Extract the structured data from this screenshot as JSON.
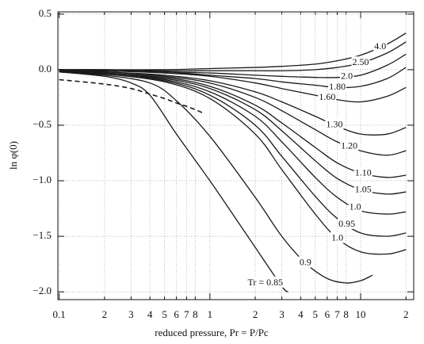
{
  "chart_data": {
    "type": "line",
    "x_label": "reduced pressure, Pr = P/Pc",
    "y_label": "ln φ(0)",
    "xscale": "log",
    "grid": true,
    "line_color": "#1a1a1a",
    "xlim": [
      0.098,
      22.5
    ],
    "ylim": [
      -2.07,
      0.52
    ],
    "xticks": [
      0.1,
      {
        "value": 0.2,
        "label": "2"
      },
      {
        "value": 0.3,
        "label": "3"
      },
      {
        "value": 0.4,
        "label": "4"
      },
      {
        "value": 0.5,
        "label": "5"
      },
      {
        "value": 0.6,
        "label": "6"
      },
      {
        "value": 0.7,
        "label": "7"
      },
      {
        "value": 0.8,
        "label": "8"
      },
      1,
      2,
      3,
      4,
      5,
      6,
      7,
      8,
      10,
      {
        "value": 20,
        "label": "2"
      }
    ],
    "yticks": [
      0.5,
      {
        "value": 0,
        "label": "0.0"
      },
      {
        "value": -0.5,
        "label": "−0.5"
      },
      {
        "value": -1,
        "label": "−1.0"
      },
      {
        "value": -1.5,
        "label": "−1.5"
      },
      {
        "value": -2,
        "label": "−2.0"
      }
    ],
    "saturation": {
      "x": [
        0.1,
        0.2,
        0.3,
        0.4,
        0.5,
        0.6,
        0.7,
        0.8,
        0.9
      ],
      "values": [
        -0.09,
        -0.13,
        -0.17,
        -0.22,
        -0.26,
        -0.3,
        -0.33,
        -0.36,
        -0.39
      ]
    },
    "series": [
      {
        "name": "4.0",
        "x": [
          0.1,
          0.2,
          0.5,
          1,
          2,
          3,
          5,
          7,
          10,
          15,
          20
        ],
        "values": [
          0,
          0,
          0,
          0.01,
          0.02,
          0.03,
          0.05,
          0.08,
          0.13,
          0.23,
          0.33
        ]
      },
      {
        "name": "2.50",
        "x": [
          0.1,
          0.2,
          0.5,
          1,
          2,
          3,
          5,
          7,
          10,
          15,
          20
        ],
        "values": [
          0,
          0,
          -0.01,
          -0.01,
          -0.01,
          -0.01,
          0,
          0.02,
          0.06,
          0.15,
          0.25
        ]
      },
      {
        "name": "2.0",
        "x": [
          0.1,
          0.2,
          0.5,
          1,
          2,
          3,
          5,
          7,
          10,
          15,
          20
        ],
        "values": [
          0,
          -0.01,
          -0.02,
          -0.03,
          -0.05,
          -0.06,
          -0.07,
          -0.07,
          -0.05,
          0.04,
          0.14
        ]
      },
      {
        "name": "1.80",
        "x": [
          0.1,
          0.2,
          0.5,
          1,
          2,
          3,
          5,
          7,
          10,
          15,
          20
        ],
        "values": [
          0,
          -0.01,
          -0.02,
          -0.05,
          -0.08,
          -0.11,
          -0.14,
          -0.16,
          -0.15,
          -0.08,
          0.02
        ]
      },
      {
        "name": "1.60",
        "x": [
          0.1,
          0.2,
          0.5,
          1,
          2,
          3,
          5,
          7,
          10,
          15,
          20
        ],
        "values": [
          0,
          -0.01,
          -0.03,
          -0.06,
          -0.12,
          -0.17,
          -0.23,
          -0.27,
          -0.29,
          -0.24,
          -0.16
        ]
      },
      {
        "name": "1.30",
        "x": [
          0.1,
          0.2,
          0.5,
          1,
          2,
          3,
          5,
          7,
          10,
          15,
          20
        ],
        "values": [
          -0.01,
          -0.02,
          -0.05,
          -0.1,
          -0.2,
          -0.29,
          -0.42,
          -0.51,
          -0.58,
          -0.58,
          -0.52
        ]
      },
      {
        "name": "1.20",
        "x": [
          0.1,
          0.2,
          0.5,
          1,
          2,
          3,
          5,
          7,
          10,
          15,
          20
        ],
        "values": [
          -0.01,
          -0.02,
          -0.06,
          -0.12,
          -0.25,
          -0.37,
          -0.54,
          -0.65,
          -0.73,
          -0.77,
          -0.73
        ]
      },
      {
        "name": "1.10",
        "x": [
          0.1,
          0.2,
          0.5,
          1,
          2,
          3,
          5,
          7,
          10,
          15,
          20
        ],
        "values": [
          -0.01,
          -0.03,
          -0.07,
          -0.15,
          -0.32,
          -0.48,
          -0.7,
          -0.84,
          -0.93,
          -0.97,
          -0.95
        ]
      },
      {
        "name": "1.05",
        "x": [
          0.1,
          0.2,
          0.5,
          1,
          2,
          3,
          5,
          7,
          10,
          15,
          20
        ],
        "values": [
          -0.01,
          -0.03,
          -0.08,
          -0.17,
          -0.36,
          -0.55,
          -0.82,
          -0.98,
          -1.08,
          -1.12,
          -1.1
        ]
      },
      {
        "name": "1.0",
        "x": [
          0.1,
          0.2,
          0.5,
          1,
          2,
          3,
          5,
          7,
          10,
          15,
          20
        ],
        "values": [
          -0.01,
          -0.03,
          -0.09,
          -0.2,
          -0.42,
          -0.65,
          -0.97,
          -1.15,
          -1.27,
          -1.3,
          -1.28
        ]
      },
      {
        "name": "0.95",
        "x": [
          0.1,
          0.2,
          0.5,
          1,
          2,
          3,
          5,
          7,
          10,
          15,
          20
        ],
        "values": [
          -0.02,
          -0.04,
          -0.1,
          -0.23,
          -0.5,
          -0.78,
          -1.14,
          -1.34,
          -1.47,
          -1.5,
          -1.47
        ]
      },
      {
        "name": "1.0",
        "x": [
          0.1,
          0.2,
          0.5,
          1,
          2,
          3,
          5,
          7,
          10,
          15,
          20
        ],
        "values": [
          -0.02,
          -0.04,
          -0.11,
          -0.26,
          -0.58,
          -0.9,
          -1.3,
          -1.52,
          -1.64,
          -1.66,
          -1.62
        ]
      },
      {
        "name": "0.9",
        "x": [
          0.1,
          0.2,
          0.4,
          0.6,
          1,
          2,
          3,
          4.3,
          6,
          8,
          10,
          12
        ],
        "values": [
          -0.02,
          -0.05,
          -0.12,
          -0.28,
          -0.6,
          -1.15,
          -1.5,
          -1.74,
          -1.88,
          -1.92,
          -1.9,
          -1.85
        ]
      },
      {
        "name": "Tr = 0.85",
        "x": [
          0.1,
          0.2,
          0.3,
          0.4,
          0.6,
          1,
          1.5,
          2,
          3,
          3.3
        ],
        "values": [
          -0.02,
          -0.06,
          -0.12,
          -0.23,
          -0.58,
          -1.0,
          -1.35,
          -1.6,
          -1.95,
          -2.0
        ]
      }
    ]
  }
}
